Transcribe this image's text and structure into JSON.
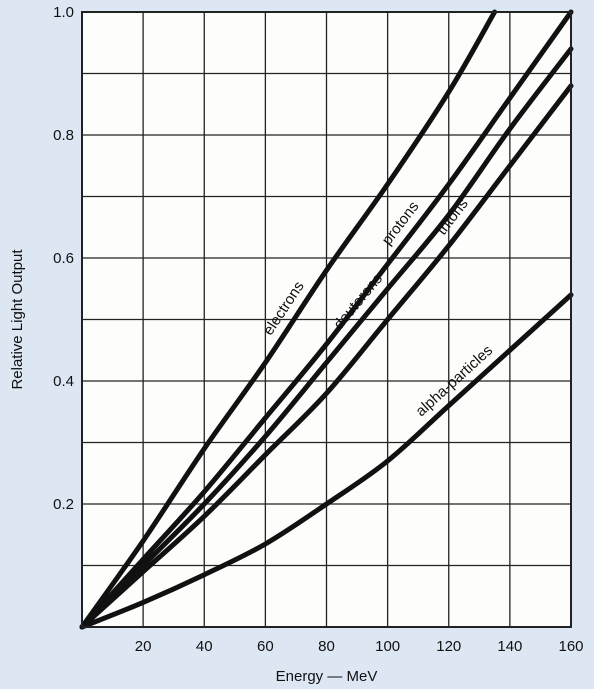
{
  "colors": {
    "background": "#dde7f3",
    "plot_background": "#fdfdfb",
    "grid": "#222222",
    "curve": "#111111",
    "text": "#111111"
  },
  "chart_data": {
    "type": "line",
    "title": "",
    "xlabel": "Energy — MeV",
    "ylabel": "Relative Light Output",
    "xlim": [
      0,
      160
    ],
    "ylim": [
      0,
      1.0
    ],
    "x_ticks": [
      20,
      40,
      60,
      80,
      100,
      120,
      140,
      160
    ],
    "x_tick_labels": [
      "20",
      "40",
      "60",
      "80",
      "100",
      "120",
      "140",
      "160"
    ],
    "y_ticks": [
      0.2,
      0.4,
      0.6,
      0.8,
      1.0
    ],
    "y_tick_labels": [
      "0.2",
      "0.4",
      "0.6",
      "0.8",
      "1.0"
    ],
    "grid": true,
    "grid_x_step": 20,
    "grid_y_step": 0.1,
    "series": [
      {
        "name": "electrons",
        "x": [
          0,
          20,
          40,
          60,
          80,
          100,
          120,
          135
        ],
        "y": [
          0,
          0.14,
          0.29,
          0.43,
          0.58,
          0.72,
          0.87,
          1.0
        ]
      },
      {
        "name": "protons",
        "x": [
          0,
          20,
          40,
          60,
          80,
          100,
          120,
          140,
          160
        ],
        "y": [
          0,
          0.11,
          0.22,
          0.34,
          0.46,
          0.59,
          0.72,
          0.86,
          1.0
        ]
      },
      {
        "name": "deuterons",
        "x": [
          0,
          20,
          40,
          60,
          80,
          100,
          120,
          140,
          160
        ],
        "y": [
          0,
          0.1,
          0.2,
          0.31,
          0.43,
          0.55,
          0.67,
          0.81,
          0.94
        ]
      },
      {
        "name": "tritons",
        "x": [
          0,
          20,
          40,
          60,
          80,
          100,
          120,
          140,
          160
        ],
        "y": [
          0,
          0.09,
          0.18,
          0.28,
          0.38,
          0.5,
          0.62,
          0.75,
          0.88
        ]
      },
      {
        "name": "alpha-particles",
        "x": [
          0,
          20,
          40,
          60,
          80,
          100,
          120,
          140,
          160
        ],
        "y": [
          0,
          0.04,
          0.085,
          0.135,
          0.2,
          0.27,
          0.36,
          0.45,
          0.54
        ]
      }
    ]
  }
}
